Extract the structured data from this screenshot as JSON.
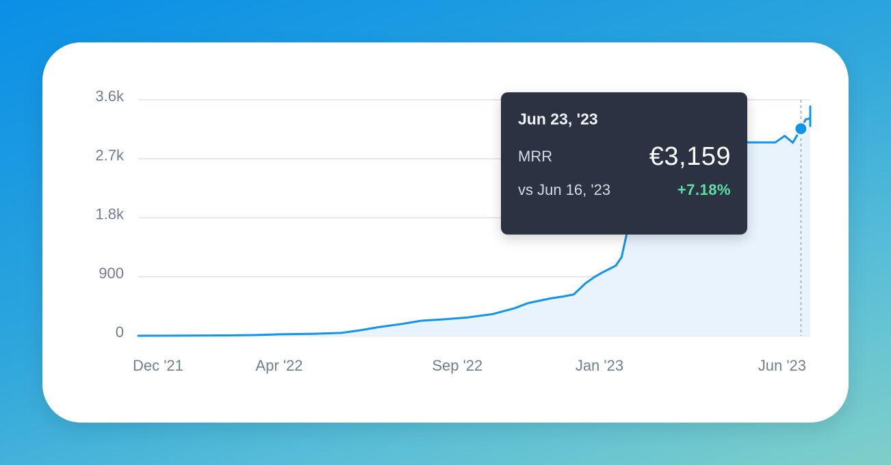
{
  "colors": {
    "line": "#1193ee",
    "area": "#e8f3fd",
    "grid": "#dde2e8",
    "axis_text": "#6f7e92",
    "tooltip_bg": "#2b3242",
    "positive": "#5ee0a6"
  },
  "chart_data": {
    "type": "area",
    "title": "",
    "xlabel": "",
    "ylabel": "",
    "y_ticks": [
      "0",
      "900",
      "1.8k",
      "2.7k",
      "3.6k"
    ],
    "ylim": [
      0,
      3600
    ],
    "xlim": [
      "2021-12-01",
      "2023-07-01"
    ],
    "x_ticks": [
      {
        "label": "Dec '21",
        "date": "2021-12-01"
      },
      {
        "label": "Apr '22",
        "date": "2022-04-01"
      },
      {
        "label": "Sep '22",
        "date": "2022-09-01"
      },
      {
        "label": "Jan '23",
        "date": "2023-01-01"
      },
      {
        "label": "Jun '23",
        "date": "2023-06-01"
      }
    ],
    "grid": true,
    "series": [
      {
        "points": [
          [
            "2021-12-01",
            0
          ],
          [
            "2022-01-15",
            2
          ],
          [
            "2022-02-15",
            5
          ],
          [
            "2022-03-10",
            10
          ],
          [
            "2022-04-01",
            22
          ],
          [
            "2022-05-01",
            30
          ],
          [
            "2022-05-25",
            45
          ],
          [
            "2022-06-10",
            85
          ],
          [
            "2022-06-25",
            130
          ],
          [
            "2022-07-15",
            180
          ],
          [
            "2022-08-01",
            230
          ],
          [
            "2022-08-20",
            250
          ],
          [
            "2022-09-10",
            280
          ],
          [
            "2022-10-01",
            330
          ],
          [
            "2022-10-20",
            420
          ],
          [
            "2022-11-01",
            500
          ],
          [
            "2022-11-20",
            570
          ],
          [
            "2022-12-01",
            600
          ],
          [
            "2022-12-10",
            630
          ],
          [
            "2022-12-20",
            800
          ],
          [
            "2022-12-28",
            900
          ],
          [
            "2023-01-05",
            980
          ],
          [
            "2023-01-15",
            1070
          ],
          [
            "2023-01-20",
            1200
          ],
          [
            "2023-01-25",
            1600
          ],
          [
            "2023-01-31",
            2100
          ],
          [
            "2023-02-10",
            2600
          ],
          [
            "2023-02-20",
            2850
          ],
          [
            "2023-03-10",
            2950
          ],
          [
            "2023-04-10",
            2980
          ],
          [
            "2023-05-10",
            2950
          ],
          [
            "2023-06-01",
            2950
          ],
          [
            "2023-06-09",
            3050
          ],
          [
            "2023-06-16",
            2947
          ],
          [
            "2023-06-23",
            3159
          ],
          [
            "2023-06-27",
            3300
          ],
          [
            "2023-07-03",
            3320
          ],
          [
            "2023-07-08",
            3480
          ],
          [
            "2023-07-11",
            3500
          ],
          [
            "2023-07-14",
            3340
          ],
          [
            "2023-07-18",
            3210
          ],
          [
            "2023-07-22",
            3200
          ]
        ]
      }
    ],
    "highlight": {
      "date": "2023-06-23",
      "value": 3159
    }
  },
  "tooltip": {
    "date": "Jun 23, '23",
    "metric_label": "MRR",
    "metric_value": "€3,159",
    "compare_label": "vs Jun 16, '23",
    "change": "+7.18%"
  }
}
